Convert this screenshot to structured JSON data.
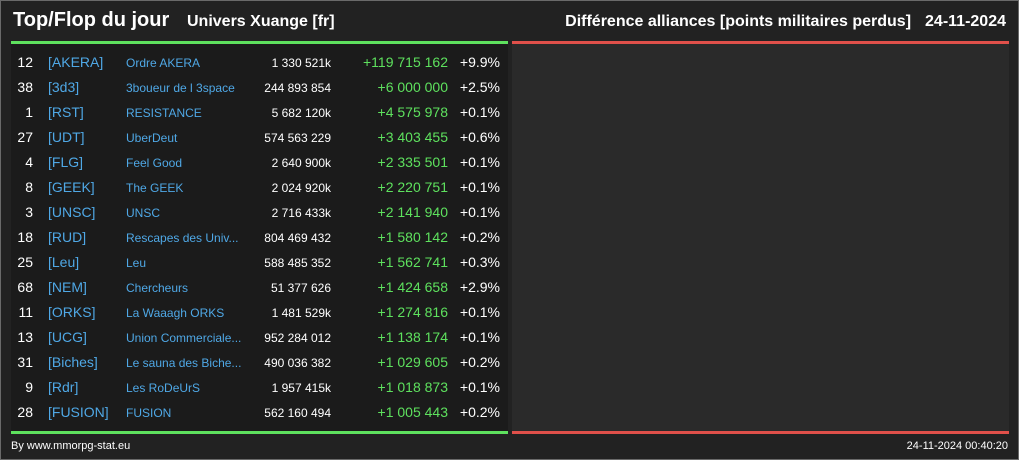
{
  "header": {
    "title": "Top/Flop du jour",
    "universe": "Univers Xuange [fr]",
    "metric": "Différence alliances [points militaires perdus]",
    "date": "24-11-2024"
  },
  "colors": {
    "accent_positive": "#5ee15e",
    "accent_negative": "#e0504a",
    "link": "#4fa8e6",
    "background": "#222222"
  },
  "top_rows": [
    {
      "rank": "12",
      "tag": "[AKERA]",
      "name": "Ordre AKERA",
      "points": "1 330 521k",
      "diff": "+119 715 162",
      "pct": "+9.9%"
    },
    {
      "rank": "38",
      "tag": "[3d3]",
      "name": "3boueur de l 3space",
      "points": "244 893 854",
      "diff": "+6 000 000",
      "pct": "+2.5%"
    },
    {
      "rank": "1",
      "tag": "[RST]",
      "name": "RESISTANCE",
      "points": "5 682 120k",
      "diff": "+4 575 978",
      "pct": "+0.1%"
    },
    {
      "rank": "27",
      "tag": "[UDT]",
      "name": "UberDeut",
      "points": "574 563 229",
      "diff": "+3 403 455",
      "pct": "+0.6%"
    },
    {
      "rank": "4",
      "tag": "[FLG]",
      "name": "Feel Good",
      "points": "2 640 900k",
      "diff": "+2 335 501",
      "pct": "+0.1%"
    },
    {
      "rank": "8",
      "tag": "[GEEK]",
      "name": "The GEEK",
      "points": "2 024 920k",
      "diff": "+2 220 751",
      "pct": "+0.1%"
    },
    {
      "rank": "3",
      "tag": "[UNSC]",
      "name": "UNSC",
      "points": "2 716 433k",
      "diff": "+2 141 940",
      "pct": "+0.1%"
    },
    {
      "rank": "18",
      "tag": "[RUD]",
      "name": "Rescapes des Univ...",
      "points": "804 469 432",
      "diff": "+1 580 142",
      "pct": "+0.2%"
    },
    {
      "rank": "25",
      "tag": "[Leu]",
      "name": "Leu",
      "points": "588 485 352",
      "diff": "+1 562 741",
      "pct": "+0.3%"
    },
    {
      "rank": "68",
      "tag": "[NEM]",
      "name": "Chercheurs",
      "points": "51 377 626",
      "diff": "+1 424 658",
      "pct": "+2.9%"
    },
    {
      "rank": "11",
      "tag": "[ORKS]",
      "name": "La Waaagh ORKS",
      "points": "1 481 529k",
      "diff": "+1 274 816",
      "pct": "+0.1%"
    },
    {
      "rank": "13",
      "tag": "[UCG]",
      "name": "Union Commerciale...",
      "points": "952 284 012",
      "diff": "+1 138 174",
      "pct": "+0.1%"
    },
    {
      "rank": "31",
      "tag": "[Biches]",
      "name": "Le sauna des Biche...",
      "points": "490 036 382",
      "diff": "+1 029 605",
      "pct": "+0.2%"
    },
    {
      "rank": "9",
      "tag": "[Rdr]",
      "name": "Les RoDeUrS",
      "points": "1 957 415k",
      "diff": "+1 018 873",
      "pct": "+0.1%"
    },
    {
      "rank": "28",
      "tag": "[FUSION]",
      "name": "FUSION",
      "points": "562 160 494",
      "diff": "+1 005 443",
      "pct": "+0.2%"
    }
  ],
  "footer": {
    "credit": "By www.mmorpg-stat.eu",
    "timestamp": "24-11-2024 00:40:20"
  }
}
